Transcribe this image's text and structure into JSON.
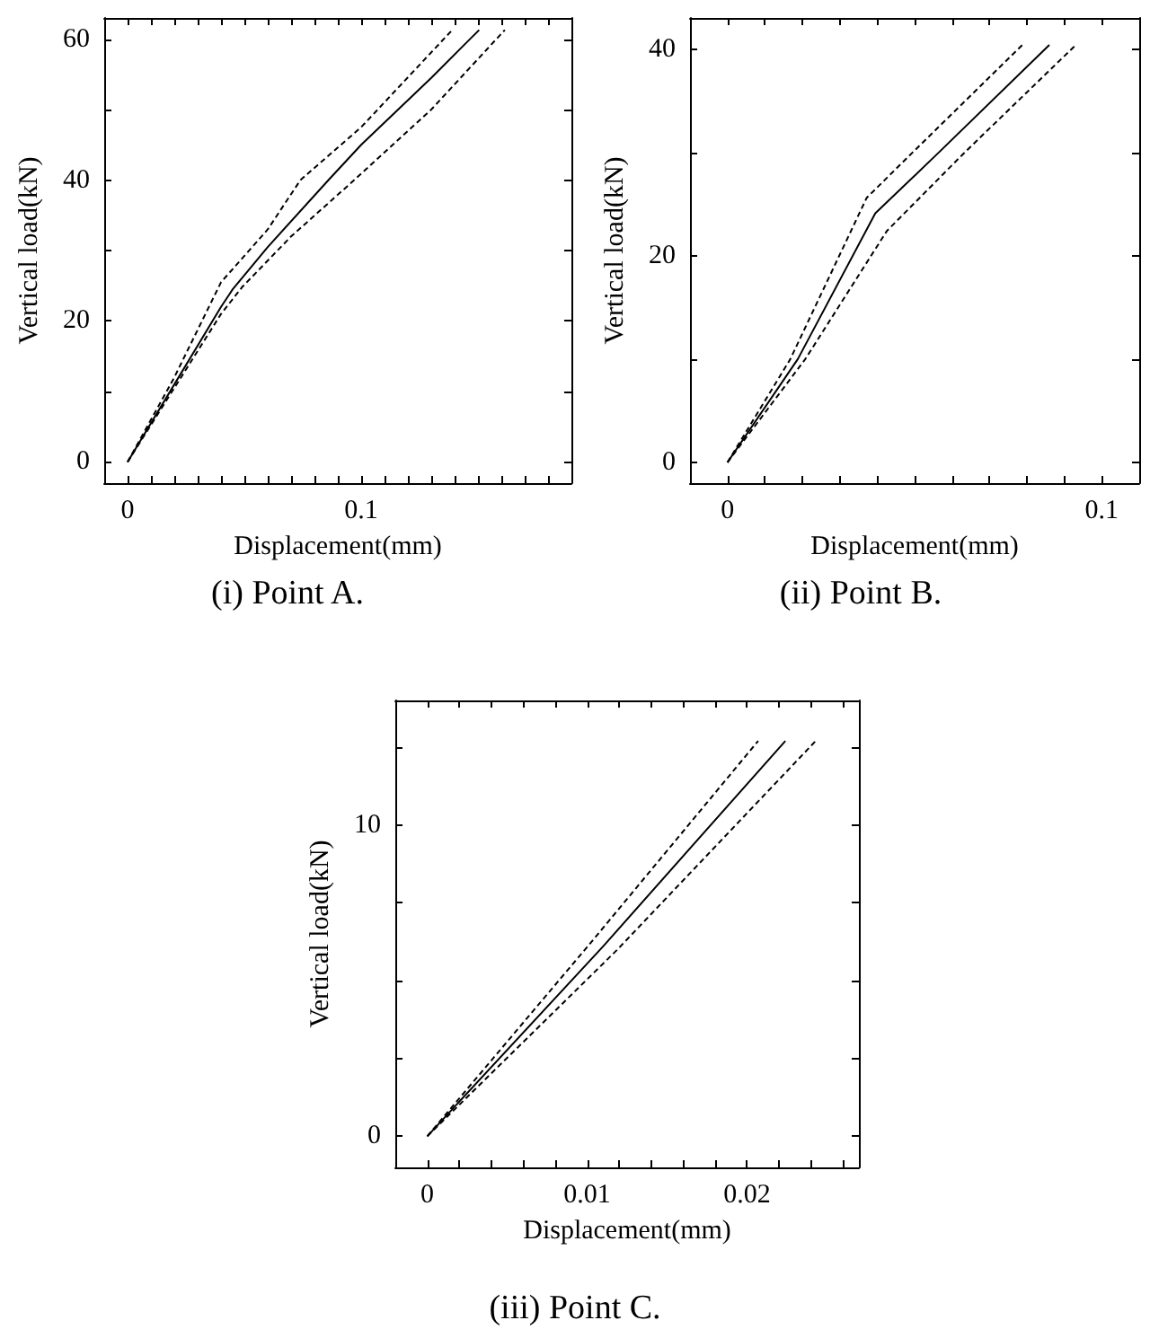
{
  "chart_data": [
    {
      "type": "line",
      "title": "(i) Point A.",
      "xlabel": "Displacement(mm)",
      "ylabel": "Vertical load(kN)",
      "xlim": [
        -0.01,
        0.19
      ],
      "ylim": [
        -3,
        63
      ],
      "xticks": [
        0,
        {
          "value": 0.01,
          "label": null
        },
        {
          "value": 0.02,
          "label": null
        },
        {
          "value": 0.03,
          "label": null
        },
        {
          "value": 0.04,
          "label": null
        },
        {
          "value": 0.05,
          "label": null
        },
        {
          "value": 0.06,
          "label": null
        },
        {
          "value": 0.07,
          "label": null
        },
        {
          "value": 0.08,
          "label": null
        },
        {
          "value": 0.09,
          "label": null
        },
        0.1,
        {
          "value": 0.11,
          "label": null
        },
        {
          "value": 0.12,
          "label": null
        },
        {
          "value": 0.13,
          "label": null
        },
        {
          "value": 0.14,
          "label": null
        },
        {
          "value": 0.15,
          "label": null
        },
        {
          "value": 0.16,
          "label": null
        },
        {
          "value": 0.17,
          "label": null
        },
        {
          "value": 0.18,
          "label": null
        }
      ],
      "yticks": [
        0,
        {
          "value": 10,
          "label": null
        },
        20,
        {
          "value": 30,
          "label": null
        },
        40,
        {
          "value": 50,
          "label": null
        },
        60
      ],
      "grid": false,
      "marker": "none",
      "series": [
        {
          "color": "#000000",
          "line_style": "solid",
          "x": [
            0,
            0.02,
            0.04,
            0.045,
            0.06,
            0.086,
            0.1,
            0.13,
            0.1505
          ],
          "values": [
            0,
            11,
            22,
            24.5,
            30.5,
            40,
            45,
            54.5,
            61.3
          ]
        },
        {
          "color": "#000000",
          "line_style": "dashed",
          "x": [
            0,
            0.02,
            0.04,
            0.06,
            0.074,
            0.1,
            0.139
          ],
          "values": [
            0,
            12,
            25.5,
            33,
            40,
            47.5,
            61.3
          ]
        },
        {
          "color": "#000000",
          "line_style": "dashed",
          "x": [
            0,
            0.02,
            0.04,
            0.049,
            0.07,
            0.097,
            0.13,
            0.1615
          ],
          "values": [
            0,
            10.5,
            21,
            24.8,
            32,
            40,
            50,
            61.3
          ]
        }
      ]
    },
    {
      "type": "line",
      "title": "(ii) Point B.",
      "xlabel": "Displacement(mm)",
      "ylabel": "Vertical load(kN)",
      "xlim": [
        -0.01,
        0.11
      ],
      "ylim": [
        -2,
        43
      ],
      "xticks": [
        0,
        {
          "value": 0.01,
          "label": null
        },
        {
          "value": 0.02,
          "label": null
        },
        {
          "value": 0.03,
          "label": null
        },
        {
          "value": 0.04,
          "label": null
        },
        {
          "value": 0.05,
          "label": null
        },
        {
          "value": 0.06,
          "label": null
        },
        {
          "value": 0.07,
          "label": null
        },
        {
          "value": 0.08,
          "label": null
        },
        {
          "value": 0.09,
          "label": null
        },
        0.1
      ],
      "yticks": [
        0,
        {
          "value": 10,
          "label": null
        },
        20,
        {
          "value": 30,
          "label": null
        },
        40
      ],
      "grid": false,
      "marker": "none",
      "series": [
        {
          "color": "#000000",
          "line_style": "solid",
          "x": [
            0,
            0.0188,
            0.0395,
            0.0565,
            0.086
          ],
          "values": [
            0,
            10,
            24.1,
            30,
            40.4
          ]
        },
        {
          "color": "#000000",
          "line_style": "dashed",
          "x": [
            0,
            0.0168,
            0.0372,
            0.0495,
            0.0788
          ],
          "values": [
            0,
            10,
            25.6,
            30,
            40.4
          ]
        },
        {
          "color": "#000000",
          "line_style": "dashed",
          "x": [
            0,
            0.0208,
            0.0426,
            0.0634,
            0.0931
          ],
          "values": [
            0,
            10,
            22.4,
            30,
            40.4
          ]
        }
      ]
    },
    {
      "type": "line",
      "title": "(iii) Point C.",
      "xlabel": "Displacement(mm)",
      "ylabel": "Vertical load(kN)",
      "xlim": [
        -0.002,
        0.027
      ],
      "ylim": [
        -1,
        14
      ],
      "xticks": [
        0,
        {
          "value": 0.002,
          "label": null
        },
        {
          "value": 0.004,
          "label": null
        },
        {
          "value": 0.006,
          "label": null
        },
        {
          "value": 0.008,
          "label": null
        },
        0.01,
        {
          "value": 0.012,
          "label": null
        },
        {
          "value": 0.014,
          "label": null
        },
        {
          "value": 0.016,
          "label": null
        },
        {
          "value": 0.018,
          "label": null
        },
        0.02,
        {
          "value": 0.022,
          "label": null
        },
        {
          "value": 0.024,
          "label": null
        },
        {
          "value": 0.026,
          "label": null
        }
      ],
      "yticks": [
        0,
        {
          "value": 2.5,
          "label": null
        },
        {
          "value": 5,
          "label": null
        },
        {
          "value": 7.5,
          "label": null
        },
        10,
        {
          "value": 12.5,
          "label": null
        }
      ],
      "grid": false,
      "marker": "none",
      "series": [
        {
          "color": "#000000",
          "line_style": "solid",
          "x": [
            0,
            0.011,
            0.0224
          ],
          "values": [
            0,
            6.1,
            12.7
          ]
        },
        {
          "color": "#000000",
          "line_style": "dashed",
          "x": [
            0,
            0.0102,
            0.0207
          ],
          "values": [
            0,
            6.2,
            12.7
          ]
        },
        {
          "color": "#000000",
          "line_style": "dashed",
          "x": [
            0,
            0.0119,
            0.0243
          ],
          "values": [
            0,
            6,
            12.7
          ]
        }
      ]
    }
  ]
}
